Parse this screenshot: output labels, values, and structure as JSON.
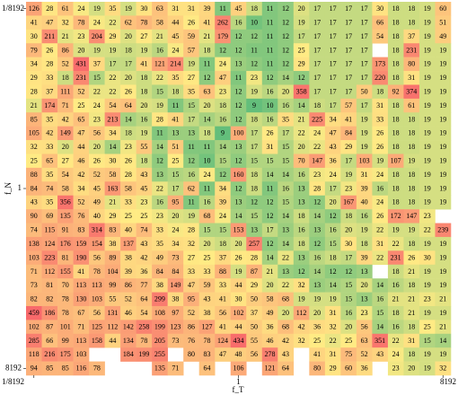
{
  "chart_data": {
    "type": "heatmap",
    "xlabel": "f_T",
    "ylabel": "f_N",
    "log_base": 2,
    "xlim": [
      0.0001220703125,
      8192
    ],
    "ylim": [
      0.0001220703125,
      8192
    ],
    "xticks": [
      {
        "value": 0.0001220703125,
        "label": "1/8192"
      },
      1,
      8192
    ],
    "yticks": [
      {
        "value": 0.0001220703125,
        "label": "1/8192"
      },
      1,
      8192
    ],
    "colors": [
      "#63be7b",
      "#ffeb84",
      "#f8696b"
    ],
    "values": [
      [
        126,
        28,
        61,
        24,
        19,
        35,
        19,
        30,
        63,
        31,
        31,
        39,
        11,
        45,
        18,
        11,
        12,
        20,
        17,
        17,
        17,
        17,
        30,
        18,
        18,
        19,
        60
      ],
      [
        41,
        47,
        32,
        78,
        24,
        22,
        62,
        78,
        58,
        44,
        26,
        41,
        262,
        16,
        10,
        11,
        12,
        19,
        17,
        17,
        17,
        17,
        66,
        18,
        18,
        19,
        51
      ],
      [
        30,
        211,
        21,
        23,
        204,
        29,
        20,
        27,
        21,
        45,
        59,
        21,
        179,
        12,
        12,
        11,
        12,
        17,
        17,
        17,
        17,
        17,
        54,
        18,
        37,
        19,
        49
      ],
      [
        79,
        26,
        86,
        20,
        19,
        19,
        18,
        19,
        16,
        24,
        57,
        18,
        12,
        12,
        11,
        11,
        12,
        25,
        17,
        17,
        17,
        17,
        null,
        18,
        231,
        19,
        19
      ],
      [
        34,
        28,
        52,
        431,
        37,
        17,
        17,
        41,
        121,
        214,
        19,
        11,
        24,
        13,
        12,
        11,
        12,
        29,
        17,
        17,
        17,
        17,
        173,
        18,
        80,
        19,
        19
      ],
      [
        29,
        33,
        18,
        231,
        15,
        22,
        20,
        18,
        22,
        35,
        27,
        12,
        47,
        11,
        23,
        12,
        14,
        12,
        17,
        17,
        17,
        17,
        220,
        18,
        31,
        19,
        19
      ],
      [
        28,
        37,
        111,
        52,
        22,
        22,
        26,
        18,
        15,
        18,
        35,
        63,
        23,
        12,
        19,
        16,
        20,
        358,
        17,
        17,
        17,
        50,
        18,
        92,
        374,
        19,
        19
      ],
      [
        21,
        174,
        71,
        25,
        24,
        54,
        64,
        20,
        19,
        11,
        15,
        20,
        18,
        12,
        9,
        10,
        16,
        14,
        18,
        17,
        57,
        17,
        31,
        18,
        61,
        19,
        19
      ],
      [
        85,
        35,
        42,
        65,
        23,
        213,
        14,
        16,
        28,
        41,
        17,
        14,
        16,
        12,
        18,
        16,
        35,
        21,
        225,
        34,
        41,
        19,
        33,
        18,
        18,
        19,
        19
      ],
      [
        105,
        42,
        149,
        47,
        56,
        34,
        18,
        19,
        11,
        13,
        13,
        18,
        9,
        100,
        17,
        26,
        17,
        22,
        24,
        47,
        84,
        19,
        26,
        18,
        18,
        19,
        19
      ],
      [
        32,
        33,
        20,
        44,
        20,
        14,
        23,
        55,
        14,
        51,
        11,
        11,
        14,
        13,
        17,
        31,
        15,
        20,
        22,
        43,
        29,
        19,
        26,
        18,
        18,
        19,
        19
      ],
      [
        25,
        65,
        27,
        46,
        26,
        30,
        26,
        18,
        12,
        25,
        12,
        10,
        15,
        12,
        15,
        15,
        15,
        70,
        147,
        36,
        17,
        103,
        19,
        107,
        19,
        19,
        19
      ],
      [
        88,
        35,
        54,
        42,
        52,
        58,
        28,
        43,
        13,
        15,
        16,
        24,
        12,
        160,
        18,
        14,
        14,
        16,
        23,
        24,
        19,
        31,
        24,
        18,
        18,
        19,
        19
      ],
      [
        84,
        74,
        58,
        34,
        45,
        163,
        58,
        45,
        22,
        17,
        62,
        11,
        34,
        12,
        18,
        11,
        16,
        13,
        28,
        17,
        23,
        39,
        16,
        18,
        18,
        19,
        19
      ],
      [
        43,
        35,
        356,
        52,
        49,
        21,
        33,
        23,
        16,
        95,
        11,
        16,
        39,
        13,
        12,
        12,
        15,
        13,
        12,
        20,
        167,
        40,
        24,
        18,
        18,
        19,
        19
      ],
      [
        90,
        69,
        135,
        76,
        40,
        29,
        25,
        25,
        23,
        20,
        19,
        68,
        24,
        14,
        15,
        12,
        14,
        18,
        14,
        12,
        18,
        16,
        26,
        172,
        147,
        23,
        null
      ],
      [
        74,
        115,
        91,
        83,
        314,
        83,
        40,
        74,
        33,
        24,
        28,
        15,
        15,
        153,
        13,
        17,
        13,
        16,
        13,
        16,
        20,
        19,
        22,
        19,
        19,
        22,
        239
      ],
      [
        138,
        124,
        176,
        159,
        154,
        38,
        137,
        43,
        35,
        34,
        32,
        20,
        18,
        20,
        257,
        12,
        14,
        18,
        12,
        15,
        30,
        18,
        31,
        22,
        18,
        19,
        19
      ],
      [
        103,
        223,
        81,
        190,
        56,
        89,
        38,
        42,
        49,
        73,
        27,
        25,
        37,
        26,
        28,
        14,
        22,
        13,
        16,
        18,
        17,
        39,
        22,
        231,
        26,
        30,
        19
      ],
      [
        71,
        112,
        155,
        41,
        78,
        104,
        39,
        36,
        84,
        84,
        33,
        33,
        88,
        19,
        87,
        21,
        13,
        12,
        14,
        12,
        12,
        13,
        null,
        18,
        21,
        19,
        19
      ],
      [
        73,
        81,
        70,
        113,
        113,
        99,
        86,
        77,
        38,
        149,
        47,
        59,
        33,
        44,
        29,
        20,
        22,
        32,
        13,
        14,
        15,
        20,
        14,
        16,
        18,
        19,
        19
      ],
      [
        82,
        82,
        78,
        130,
        103,
        55,
        52,
        64,
        299,
        38,
        95,
        43,
        41,
        30,
        50,
        58,
        68,
        19,
        19,
        19,
        15,
        13,
        16,
        21,
        21,
        23,
        21
      ],
      [
        459,
        186,
        78,
        67,
        56,
        131,
        46,
        54,
        108,
        97,
        52,
        38,
        56,
        102,
        37,
        49,
        20,
        112,
        20,
        31,
        16,
        23,
        15,
        18,
        21,
        19,
        19
      ],
      [
        102,
        87,
        101,
        71,
        125,
        112,
        142,
        258,
        199,
        123,
        86,
        127,
        41,
        44,
        50,
        36,
        68,
        42,
        36,
        32,
        20,
        56,
        14,
        16,
        18,
        25,
        21
      ],
      [
        285,
        66,
        99,
        113,
        158,
        44,
        134,
        78,
        205,
        73,
        76,
        78,
        124,
        434,
        55,
        46,
        42,
        32,
        25,
        22,
        25,
        63,
        351,
        22,
        31,
        15,
        14
      ],
      [
        118,
        216,
        175,
        103,
        null,
        null,
        184,
        199,
        255,
        null,
        80,
        83,
        47,
        48,
        56,
        278,
        43,
        null,
        41,
        31,
        75,
        52,
        43,
        24,
        18,
        19,
        19
      ],
      [
        94,
        85,
        85,
        116,
        78,
        null,
        null,
        null,
        135,
        71,
        null,
        64,
        null,
        106,
        null,
        121,
        64,
        null,
        80,
        29,
        60,
        36,
        null,
        23,
        20,
        19,
        32
      ]
    ]
  }
}
